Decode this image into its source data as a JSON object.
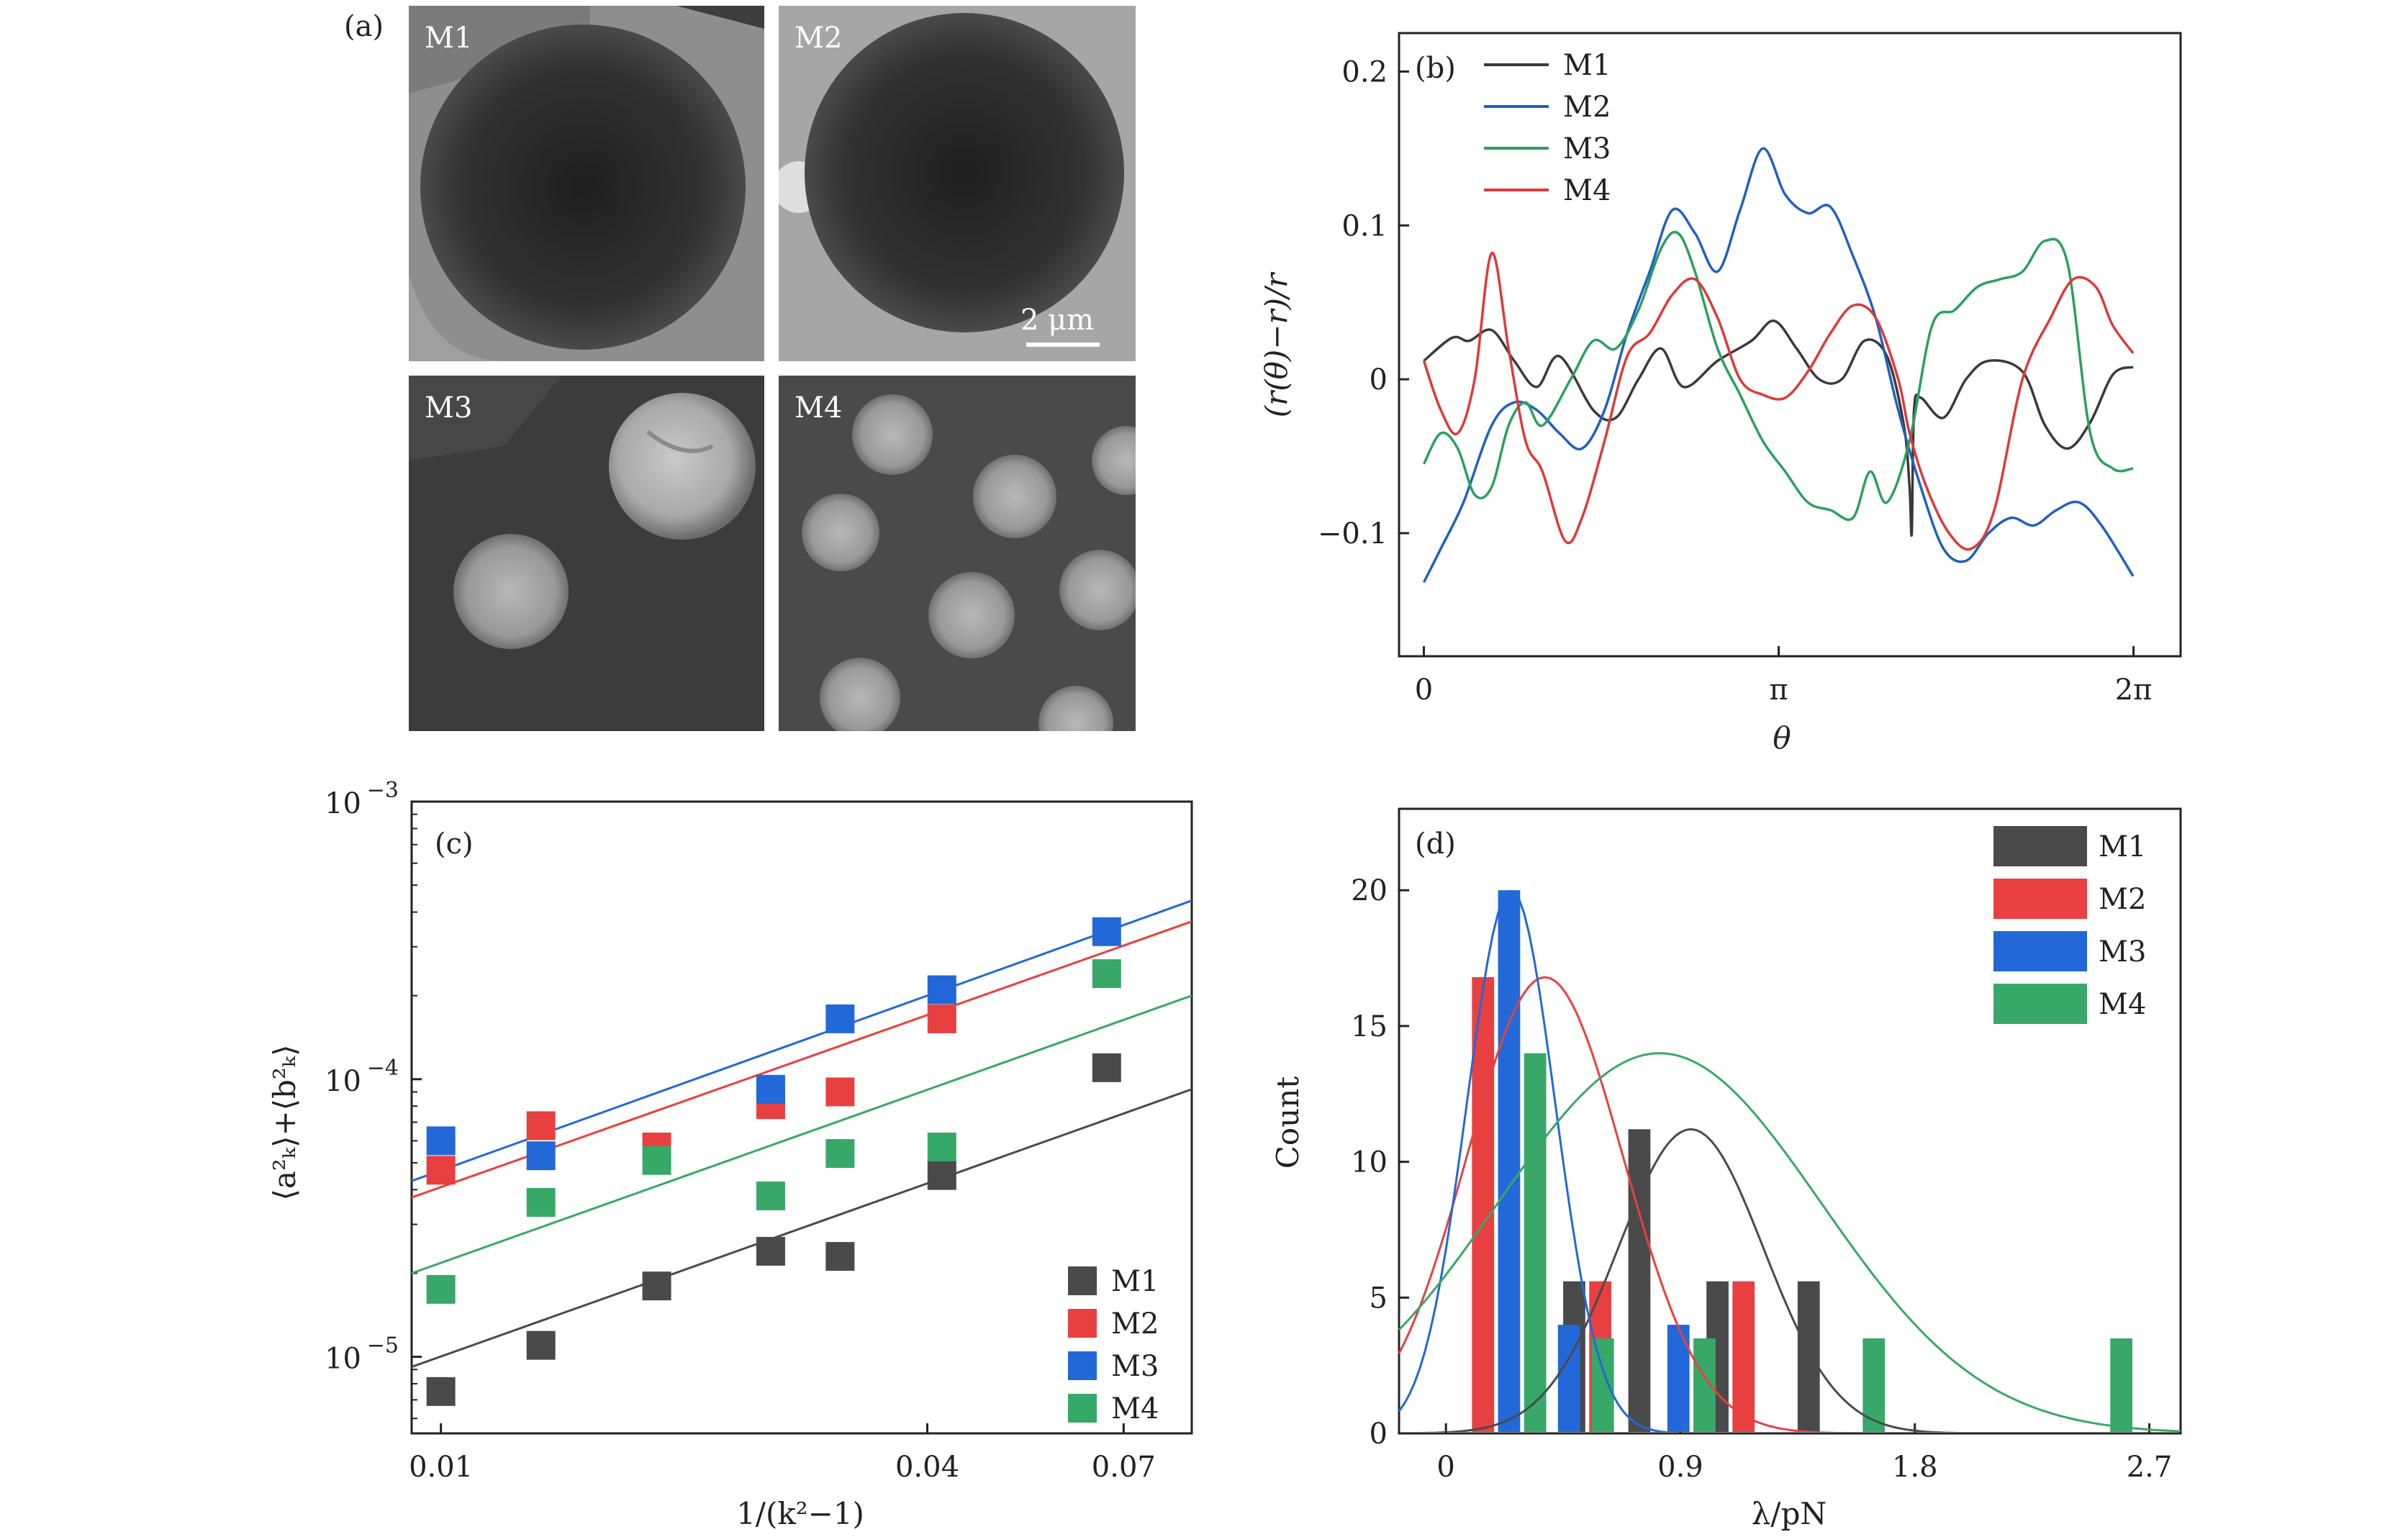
{
  "panels": {
    "a": {
      "label": "(a)",
      "images": [
        {
          "name": "M1"
        },
        {
          "name": "M2"
        },
        {
          "name": "M3"
        },
        {
          "name": "M4"
        }
      ],
      "scale_bar": "2 μm"
    }
  },
  "chart_data": [
    {
      "panel": "b",
      "label": "(b)",
      "type": "line",
      "xlabel": "θ",
      "ylabel": "(r(θ)−r)/r",
      "xlim": [
        -0.22,
        6.7
      ],
      "ylim": [
        -0.18,
        0.225
      ],
      "xticks": [
        {
          "v": 0,
          "t": "0"
        },
        {
          "v": 3.14159,
          "t": "π"
        },
        {
          "v": 6.28318,
          "t": "2π"
        }
      ],
      "yticks": [
        {
          "v": -0.1,
          "t": "−0.1"
        },
        {
          "v": 0,
          "t": "0"
        },
        {
          "v": 0.1,
          "t": "0.1"
        },
        {
          "v": 0.2,
          "t": "0.2"
        }
      ],
      "legend": "top-left",
      "series": [
        {
          "name": "M1",
          "color": "#3a3a3a",
          "x": [
            0,
            0.25,
            0.4,
            0.6,
            0.8,
            1.0,
            1.2,
            1.5,
            1.7,
            1.9,
            2.1,
            2.3,
            2.6,
            2.9,
            3.1,
            3.3,
            3.5,
            3.7,
            3.9,
            4.1,
            4.25,
            4.3,
            4.32,
            4.34,
            4.4,
            4.6,
            4.8,
            5.0,
            5.3,
            5.5,
            5.7,
            5.9,
            6.1,
            6.28
          ],
          "y": [
            0.012,
            0.027,
            0.025,
            0.032,
            0.012,
            -0.005,
            0.015,
            -0.02,
            -0.025,
            0.0,
            0.02,
            -0.005,
            0.012,
            0.025,
            0.038,
            0.02,
            0.0,
            0.0,
            0.025,
            0.015,
            -0.03,
            -0.07,
            -0.1,
            -0.02,
            -0.012,
            -0.025,
            0.0,
            0.012,
            0.005,
            -0.03,
            -0.045,
            -0.028,
            0.003,
            0.008
          ]
        },
        {
          "name": "M2",
          "color": "#2060c0",
          "x": [
            0,
            0.15,
            0.35,
            0.6,
            0.8,
            1.0,
            1.2,
            1.4,
            1.6,
            1.8,
            2.0,
            2.2,
            2.4,
            2.6,
            2.8,
            3.0,
            3.2,
            3.4,
            3.6,
            3.8,
            4.0,
            4.2,
            4.4,
            4.6,
            4.8,
            5.0,
            5.2,
            5.4,
            5.6,
            5.8,
            6.0,
            6.28
          ],
          "y": [
            -0.132,
            -0.11,
            -0.08,
            -0.03,
            -0.015,
            -0.02,
            -0.035,
            -0.045,
            -0.02,
            0.03,
            0.07,
            0.11,
            0.095,
            0.07,
            0.11,
            0.15,
            0.12,
            0.108,
            0.112,
            0.08,
            0.04,
            -0.02,
            -0.07,
            -0.11,
            -0.118,
            -0.1,
            -0.09,
            -0.095,
            -0.085,
            -0.08,
            -0.095,
            -0.128
          ]
        },
        {
          "name": "M3",
          "color": "#2aa060",
          "x": [
            0,
            0.15,
            0.3,
            0.45,
            0.6,
            0.75,
            0.9,
            1.05,
            1.3,
            1.5,
            1.7,
            1.9,
            2.1,
            2.25,
            2.4,
            2.6,
            2.8,
            3.0,
            3.2,
            3.4,
            3.6,
            3.8,
            3.95,
            4.1,
            4.3,
            4.5,
            4.7,
            4.9,
            5.1,
            5.3,
            5.5,
            5.7,
            5.9,
            6.1,
            6.28
          ],
          "y": [
            -0.055,
            -0.035,
            -0.045,
            -0.075,
            -0.07,
            -0.03,
            -0.015,
            -0.03,
            0.0,
            0.025,
            0.02,
            0.045,
            0.085,
            0.095,
            0.07,
            0.02,
            -0.01,
            -0.04,
            -0.06,
            -0.08,
            -0.085,
            -0.09,
            -0.06,
            -0.08,
            -0.04,
            0.035,
            0.045,
            0.06,
            0.065,
            0.07,
            0.09,
            0.075,
            -0.035,
            -0.058,
            -0.058
          ]
        },
        {
          "name": "M4",
          "color": "#dd3a3a",
          "x": [
            0,
            0.15,
            0.3,
            0.45,
            0.6,
            0.75,
            0.9,
            1.05,
            1.25,
            1.4,
            1.6,
            1.8,
            2.0,
            2.2,
            2.4,
            2.6,
            2.8,
            3.0,
            3.2,
            3.4,
            3.6,
            3.8,
            4.0,
            4.2,
            4.3,
            4.45,
            4.65,
            4.85,
            5.05,
            5.3,
            5.55,
            5.75,
            5.95,
            6.1,
            6.28
          ],
          "y": [
            0.012,
            -0.02,
            -0.035,
            0.0,
            0.082,
            0.02,
            -0.04,
            -0.06,
            -0.105,
            -0.09,
            -0.04,
            0.015,
            0.03,
            0.055,
            0.065,
            0.04,
            0.0,
            -0.01,
            -0.012,
            0.005,
            0.03,
            0.048,
            0.04,
            0.0,
            -0.035,
            -0.07,
            -0.1,
            -0.11,
            -0.085,
            0.0,
            0.04,
            0.065,
            0.06,
            0.035,
            0.017
          ]
        }
      ]
    },
    {
      "panel": "c",
      "label": "(c)",
      "type": "scatter",
      "scale": "log-log",
      "xlabel": "1/(k²−1)",
      "ylabel": "⟨a²ₖ⟩+⟨b²ₖ⟩",
      "xlim": [
        0.0092,
        0.085
      ],
      "ylim": [
        5.3e-06,
        0.001
      ],
      "xticks": [
        {
          "v": 0.01,
          "t": "0.01"
        },
        {
          "v": 0.04,
          "t": "0.04"
        },
        {
          "v": 0.07,
          "t": "0.07"
        }
      ],
      "yticks": [
        {
          "v": 1e-05,
          "base": "10",
          "exp": "−5"
        },
        {
          "v": 0.0001,
          "base": "10",
          "exp": "−4"
        },
        {
          "v": 0.001,
          "base": "10",
          "exp": "−3"
        }
      ],
      "legend": "bottom-right",
      "series": [
        {
          "name": "M1",
          "color": "#4a4a4a",
          "x": [
            0.01,
            0.0133,
            0.0185,
            0.0256,
            0.0312,
            0.0417,
            0.0667
          ],
          "y": [
            7.5e-06,
            1.1e-05,
            1.8e-05,
            2.4e-05,
            2.3e-05,
            4.5e-05,
            0.00011
          ],
          "fit": [
            [
              0.0092,
              9.2e-06
            ],
            [
              0.085,
              9.2e-05
            ]
          ]
        },
        {
          "name": "M2",
          "color": "#e84040",
          "x": [
            0.01,
            0.0133,
            0.0185,
            0.0256,
            0.0312,
            0.0417
          ],
          "y": [
            4.7e-05,
            6.8e-05,
            5.7e-05,
            8.1e-05,
            9e-05,
            0.000165
          ],
          "fit": [
            [
              0.0092,
              3.75e-05
            ],
            [
              0.085,
              0.00037
            ]
          ]
        },
        {
          "name": "M3",
          "color": "#2268d8",
          "x": [
            0.01,
            0.0133,
            0.0256,
            0.0312,
            0.0417,
            0.0667
          ],
          "y": [
            6e-05,
            5.3e-05,
            9.2e-05,
            0.000165,
            0.00021,
            0.00034
          ],
          "fit": [
            [
              0.0092,
              4.3e-05
            ],
            [
              0.085,
              0.00044
            ]
          ]
        },
        {
          "name": "M4",
          "color": "#38a868",
          "x": [
            0.01,
            0.0133,
            0.0185,
            0.0256,
            0.0312,
            0.0417,
            0.0667
          ],
          "y": [
            1.75e-05,
            3.6e-05,
            5.1e-05,
            3.8e-05,
            5.4e-05,
            5.7e-05,
            0.00024
          ],
          "fit": [
            [
              0.0092,
              2e-05
            ],
            [
              0.085,
              0.0002
            ]
          ]
        }
      ]
    },
    {
      "panel": "d",
      "label": "(d)",
      "type": "bar",
      "xlabel": "λ/pN",
      "ylabel": "Count",
      "xlim": [
        -0.18,
        2.82
      ],
      "ylim": [
        0,
        23
      ],
      "xticks": [
        {
          "v": 0,
          "t": "0"
        },
        {
          "v": 0.9,
          "t": "0.9"
        },
        {
          "v": 1.8,
          "t": "1.8"
        },
        {
          "v": 2.7,
          "t": "2.7"
        }
      ],
      "yticks": [
        {
          "v": 0,
          "t": "0"
        },
        {
          "v": 5,
          "t": "5"
        },
        {
          "v": 10,
          "t": "10"
        },
        {
          "v": 15,
          "t": "15"
        },
        {
          "v": 20,
          "t": "20"
        }
      ],
      "bin_width": 0.085,
      "legend": "top-right",
      "series": [
        {
          "name": "M1",
          "color": "#4a4a4a",
          "bins": [
            0.45,
            0.7,
            1.0,
            1.35
          ],
          "counts": [
            5.6,
            11.2,
            5.6,
            5.6
          ],
          "fit": {
            "mu": 0.94,
            "sigma": 0.28,
            "peak": 11.2
          }
        },
        {
          "name": "M2",
          "color": "#e84040",
          "bins": [
            0.1,
            0.55,
            1.1
          ],
          "counts": [
            16.8,
            5.6,
            5.6
          ],
          "fit": {
            "mu": 0.38,
            "sigma": 0.3,
            "peak": 16.8
          }
        },
        {
          "name": "M3",
          "color": "#2268d8",
          "bins": [
            0.2,
            0.43,
            0.85
          ],
          "counts": [
            20,
            4,
            4
          ],
          "fit": {
            "mu": 0.25,
            "sigma": 0.17,
            "peak": 20
          }
        },
        {
          "name": "M4",
          "color": "#38a868",
          "bins": [
            0.3,
            0.56,
            0.95,
            1.6,
            2.55
          ],
          "counts": [
            14,
            3.5,
            3.5,
            3.5,
            3.5
          ],
          "fit": {
            "mu": 0.82,
            "sigma": 0.62,
            "peak": 14
          }
        }
      ]
    }
  ]
}
